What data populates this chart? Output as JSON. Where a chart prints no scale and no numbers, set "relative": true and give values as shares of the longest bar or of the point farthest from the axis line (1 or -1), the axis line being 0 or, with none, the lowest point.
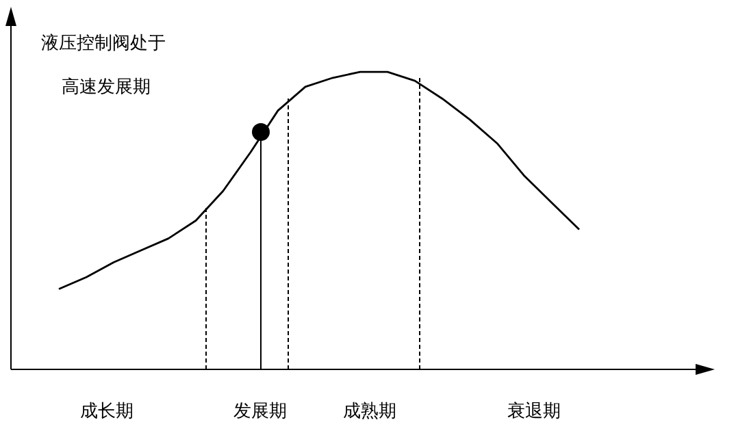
{
  "chart_data": {
    "type": "line",
    "relative": true,
    "categories": [
      null,
      null,
      null,
      null,
      null,
      null,
      null,
      null,
      null,
      null,
      null,
      null,
      null,
      null,
      null,
      null,
      null,
      null,
      null,
      null
    ],
    "annotations": [
      "液压控制阀处于高速发展期",
      "成长期",
      "发展期",
      "成熟期",
      "衰退期"
    ],
    "series": [
      {
        "color": "#000000",
        "values": [
          0.27,
          0.31,
          0.36,
          0.4,
          0.44,
          0.5,
          0.6,
          0.73,
          0.87,
          0.95,
          0.98,
          1,
          1,
          0.97,
          0.91,
          0.84,
          0.76,
          0.65,
          0.56,
          0.47
        ]
      }
    ]
  }
}
